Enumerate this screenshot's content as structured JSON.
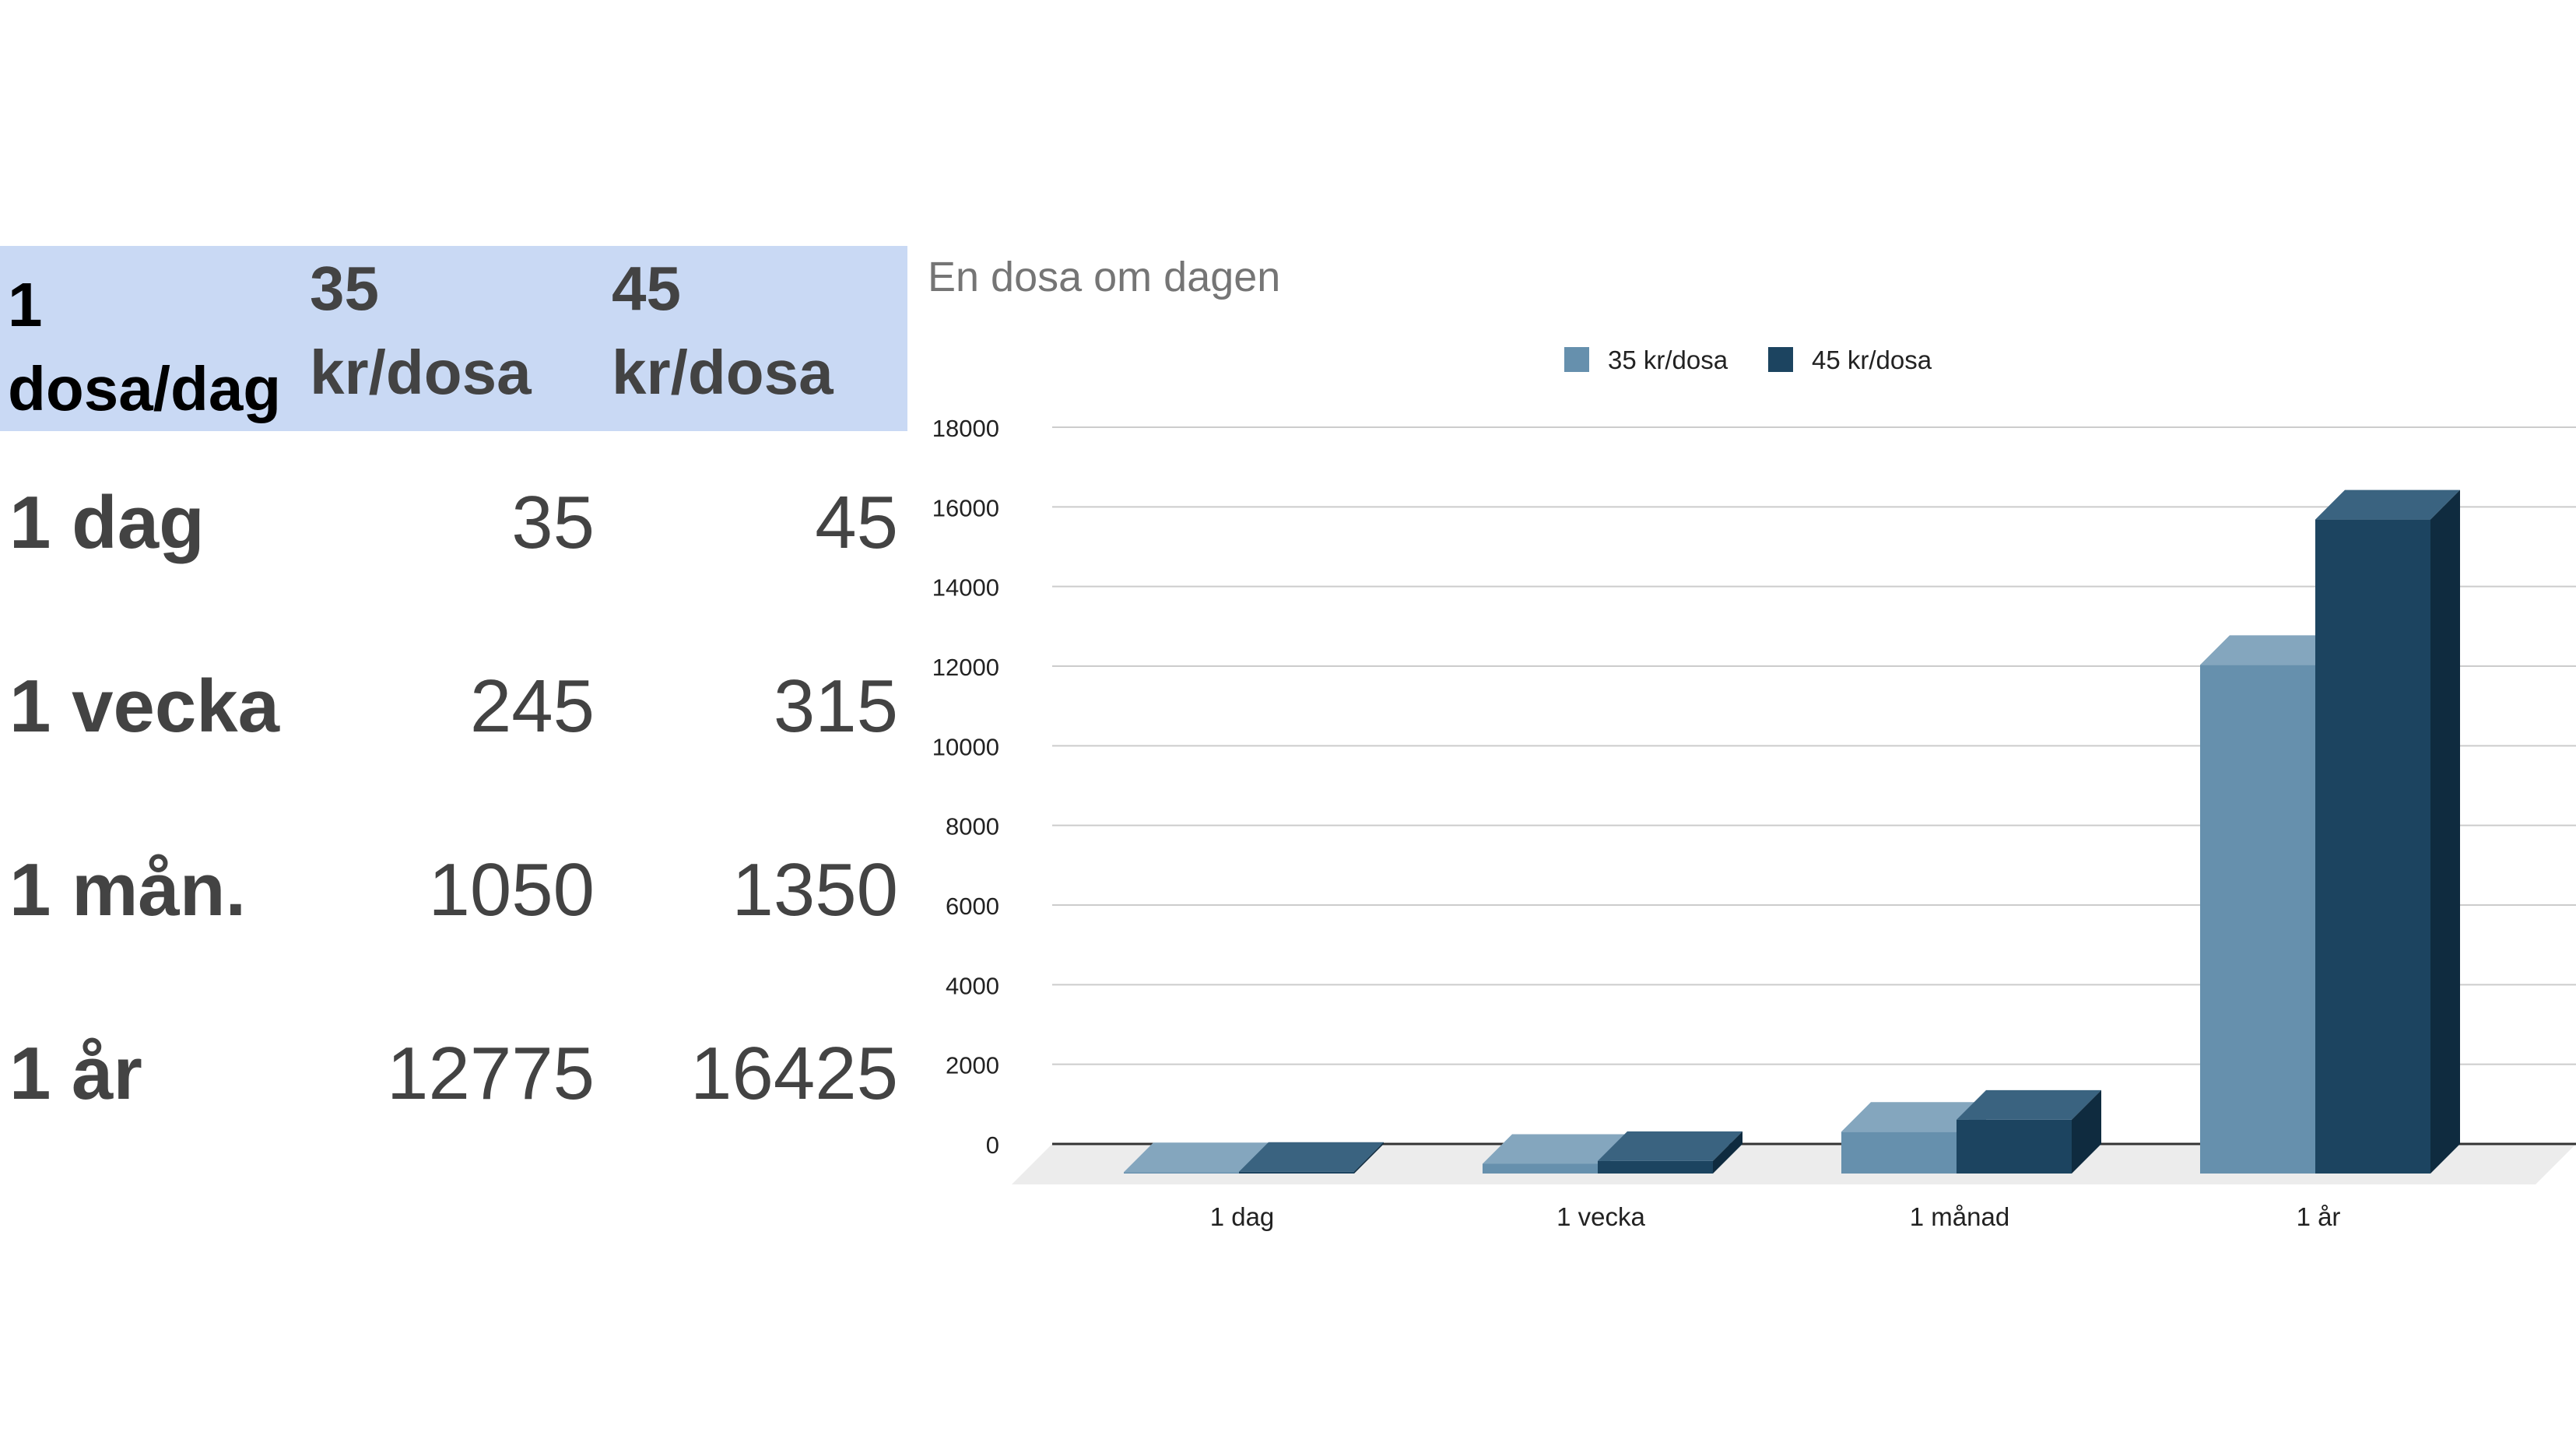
{
  "table": {
    "headers": [
      "1 dosa/dag",
      "35 kr/dosa",
      "45 kr/dosa"
    ],
    "rows": [
      {
        "label": "1 dag",
        "a": "35",
        "b": "45"
      },
      {
        "label": "1 vecka",
        "a": "245",
        "b": "315"
      },
      {
        "label": "1 mån.",
        "a": "1050",
        "b": "1350"
      },
      {
        "label": "1 år",
        "a": "12775",
        "b": "16425"
      }
    ]
  },
  "chart_data": {
    "type": "bar",
    "title": "En dosa om dagen",
    "categories": [
      "1 dag",
      "1 vecka",
      "1 månad",
      "1 år"
    ],
    "series": [
      {
        "name": "35 kr/dosa",
        "values": [
          35,
          245,
          1050,
          12775
        ],
        "color": "#6690ad",
        "top": "#84a6be",
        "side": "#4d738f"
      },
      {
        "name": "45 kr/dosa",
        "values": [
          45,
          315,
          1350,
          16425
        ],
        "color": "#1c4460",
        "top": "#3a6380",
        "side": "#0f2b3f"
      }
    ],
    "ylim": [
      0,
      18000
    ],
    "yticks": [
      0,
      2000,
      4000,
      6000,
      8000,
      10000,
      12000,
      14000,
      16000,
      18000
    ],
    "legend": "top-center",
    "grid": true,
    "floor_color": "#ececec",
    "xlabel": "",
    "ylabel": ""
  }
}
